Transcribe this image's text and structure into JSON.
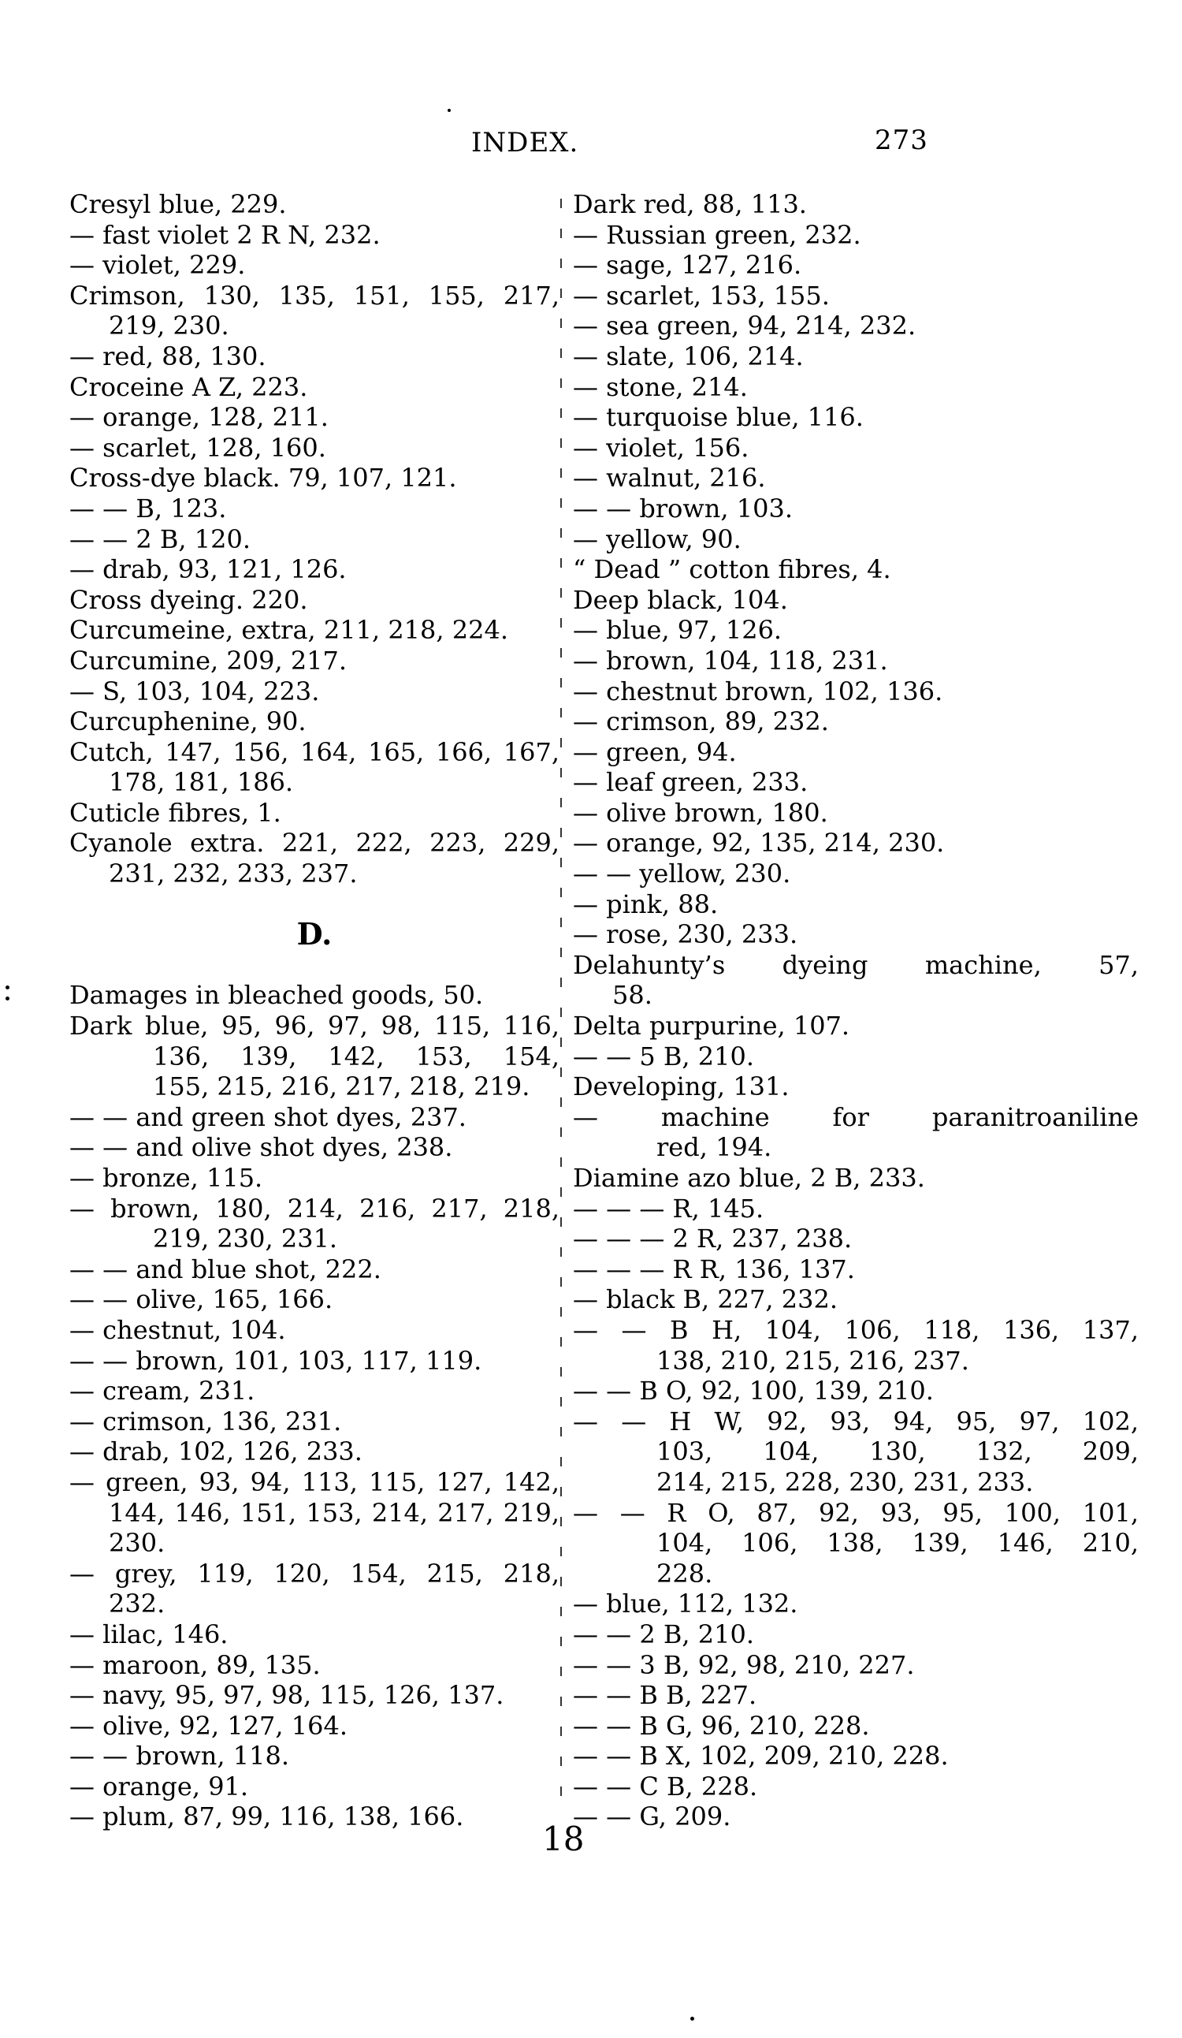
{
  "header": {
    "title": "INDEX.",
    "page_number": "273"
  },
  "footer": {
    "signature_mark": "18"
  },
  "columns": {
    "left": {
      "lines": [
        {
          "text": "Cresyl blue, 229.",
          "indent": 0
        },
        {
          "text": "— fast violet 2 R N, 232.",
          "indent": 0
        },
        {
          "text": "— violet, 229.",
          "indent": 0
        },
        {
          "text": "Crimson, 130, 135, 151, 155, 217,",
          "indent": 0,
          "just": true
        },
        {
          "text": "219, 230.",
          "indent": 1
        },
        {
          "text": "— red, 88, 130.",
          "indent": 0
        },
        {
          "text": "Croceine A Z, 223.",
          "indent": 0
        },
        {
          "text": "— orange, 128, 211.",
          "indent": 0
        },
        {
          "text": "— scarlet, 128, 160.",
          "indent": 0
        },
        {
          "text": "Cross-dye black. 79, 107, 121.",
          "indent": 0
        },
        {
          "text": "— — B, 123.",
          "indent": 0
        },
        {
          "text": "— — 2 B, 120.",
          "indent": 0
        },
        {
          "text": "— drab, 93, 121, 126.",
          "indent": 0
        },
        {
          "text": "Cross dyeing. 220.",
          "indent": 0
        },
        {
          "text": "Curcumeine, extra, 211, 218, 224.",
          "indent": 0
        },
        {
          "text": "Curcumine, 209, 217.",
          "indent": 0
        },
        {
          "text": "— S, 103, 104, 223.",
          "indent": 0
        },
        {
          "text": "Curcuphenine, 90.",
          "indent": 0
        },
        {
          "text": "Cutch, 147, 156, 164, 165, 166, 167,",
          "indent": 0,
          "just": true
        },
        {
          "text": "178, 181, 186.",
          "indent": 1
        },
        {
          "text": "Cuticle fibres, 1.",
          "indent": 0
        },
        {
          "text": "Cyanole extra. 221, 222, 223, 229,",
          "indent": 0,
          "just": true
        },
        {
          "text": "231, 232, 233, 237.",
          "indent": 1
        },
        {
          "type": "blank"
        },
        {
          "type": "heading",
          "text": "D."
        },
        {
          "type": "blank"
        },
        {
          "text": "Damages in bleached goods, 50.",
          "indent": 0
        },
        {
          "text": "Dark blue, 95, 96, 97, 98, 115, 116,",
          "indent": 0,
          "just": true
        },
        {
          "text": "136, 139, 142, 153, 154,",
          "indent": 2,
          "just": true
        },
        {
          "text": "155, 215, 216, 217, 218, 219.",
          "indent": 2
        },
        {
          "text": "— — and green shot dyes, 237.",
          "indent": 0
        },
        {
          "text": "— — and olive shot dyes, 238.",
          "indent": 0
        },
        {
          "text": "— bronze, 115.",
          "indent": 0
        },
        {
          "text": "— brown, 180, 214, 216, 217, 218,",
          "indent": 0,
          "just": true
        },
        {
          "text": "219, 230, 231.",
          "indent": 2
        },
        {
          "text": "— — and blue shot, 222.",
          "indent": 0
        },
        {
          "text": "— — olive, 165, 166.",
          "indent": 0
        },
        {
          "text": "— chestnut, 104.",
          "indent": 0
        },
        {
          "text": "— — brown, 101, 103, 117, 119.",
          "indent": 0
        },
        {
          "text": "— cream, 231.",
          "indent": 0
        },
        {
          "text": "— crimson, 136, 231.",
          "indent": 0
        },
        {
          "text": "— drab, 102, 126, 233.",
          "indent": 0
        },
        {
          "text": "— green, 93, 94, 113, 115, 127, 142,",
          "indent": 0,
          "just": true
        },
        {
          "text": "144, 146, 151, 153, 214, 217, 219,",
          "indent": 1,
          "just": true
        },
        {
          "text": "230.",
          "indent": 1
        },
        {
          "text": "— grey, 119, 120, 154, 215, 218,",
          "indent": 0,
          "just": true
        },
        {
          "text": "232.",
          "indent": 1
        },
        {
          "text": "— lilac, 146.",
          "indent": 0
        },
        {
          "text": "— maroon, 89, 135.",
          "indent": 0
        },
        {
          "text": "— navy, 95, 97, 98, 115, 126, 137.",
          "indent": 0
        },
        {
          "text": "— olive, 92, 127, 164.",
          "indent": 0
        },
        {
          "text": "— — brown, 118.",
          "indent": 0
        },
        {
          "text": "— orange, 91.",
          "indent": 0
        },
        {
          "text": "— plum, 87, 99, 116, 138, 166.",
          "indent": 0
        }
      ]
    },
    "right": {
      "lines": [
        {
          "text": "Dark red, 88, 113.",
          "indent": 0
        },
        {
          "text": "— Russian green, 232.",
          "indent": 0
        },
        {
          "text": "— sage, 127, 216.",
          "indent": 0
        },
        {
          "text": "— scarlet, 153, 155.",
          "indent": 0
        },
        {
          "text": "— sea green, 94, 214, 232.",
          "indent": 0
        },
        {
          "text": "— slate, 106, 214.",
          "indent": 0
        },
        {
          "text": "— stone, 214.",
          "indent": 0
        },
        {
          "text": "— turquoise blue, 116.",
          "indent": 0
        },
        {
          "text": "— violet, 156.",
          "indent": 0
        },
        {
          "text": "— walnut, 216.",
          "indent": 0
        },
        {
          "text": "— — brown, 103.",
          "indent": 0
        },
        {
          "text": "— yellow, 90.",
          "indent": 0
        },
        {
          "text": "“ Dead ” cotton fibres, 4.",
          "indent": 0
        },
        {
          "text": "Deep black, 104.",
          "indent": 0
        },
        {
          "text": "— blue, 97, 126.",
          "indent": 0
        },
        {
          "text": "— brown, 104, 118, 231.",
          "indent": 0
        },
        {
          "text": "— chestnut brown, 102, 136.",
          "indent": 0
        },
        {
          "text": "— crimson, 89, 232.",
          "indent": 0
        },
        {
          "text": "— green, 94.",
          "indent": 0
        },
        {
          "text": "— leaf green, 233.",
          "indent": 0
        },
        {
          "text": "— olive brown, 180.",
          "indent": 0
        },
        {
          "text": "— orange, 92, 135, 214, 230.",
          "indent": 0
        },
        {
          "text": "— — yellow, 230.",
          "indent": 0
        },
        {
          "text": "— pink, 88.",
          "indent": 0
        },
        {
          "text": "— rose, 230, 233.",
          "indent": 0
        },
        {
          "text": "Delahunty’s dyeing machine, 57,",
          "indent": 0,
          "just": true
        },
        {
          "text": "58.",
          "indent": 1
        },
        {
          "text": "Delta purpurine, 107.",
          "indent": 0
        },
        {
          "text": "— — 5 B, 210.",
          "indent": 0
        },
        {
          "text": "Developing, 131.",
          "indent": 0
        },
        {
          "text": "— machine for paranitroaniline",
          "indent": 0,
          "just": true
        },
        {
          "text": "red, 194.",
          "indent": 2
        },
        {
          "text": "Diamine azo blue, 2 B, 233.",
          "indent": 0
        },
        {
          "text": "— — — R, 145.",
          "indent": 0
        },
        {
          "text": "— — — 2 R, 237, 238.",
          "indent": 0
        },
        {
          "text": "— — — R R, 136, 137.",
          "indent": 0
        },
        {
          "text": "— black B, 227, 232.",
          "indent": 0
        },
        {
          "text": "— — B H, 104, 106, 118, 136, 137,",
          "indent": 0,
          "just": true
        },
        {
          "text": "138, 210, 215, 216, 237.",
          "indent": 2
        },
        {
          "text": "— — B O, 92, 100, 139, 210.",
          "indent": 0
        },
        {
          "text": "— — H W, 92, 93, 94, 95, 97, 102,",
          "indent": 0,
          "just": true
        },
        {
          "text": "103, 104, 130, 132, 209,",
          "indent": 2,
          "just": true
        },
        {
          "text": "214, 215, 228, 230, 231, 233.",
          "indent": 2
        },
        {
          "text": "— — R O, 87, 92, 93, 95, 100, 101,",
          "indent": 0,
          "just": true
        },
        {
          "text": "104, 106, 138, 139, 146, 210,",
          "indent": 2,
          "just": true
        },
        {
          "text": "228.",
          "indent": 2
        },
        {
          "text": "— blue, 112, 132.",
          "indent": 0
        },
        {
          "text": "— — 2 B, 210.",
          "indent": 0
        },
        {
          "text": "— — 3 B, 92, 98, 210, 227.",
          "indent": 0
        },
        {
          "text": "— — B B, 227.",
          "indent": 0
        },
        {
          "text": "— — B G, 96, 210, 228.",
          "indent": 0
        },
        {
          "text": "— — B X, 102, 209, 210, 228.",
          "indent": 0
        },
        {
          "text": "— — C B, 228.",
          "indent": 0
        },
        {
          "text": "— — G, 209.",
          "indent": 0
        }
      ]
    }
  }
}
